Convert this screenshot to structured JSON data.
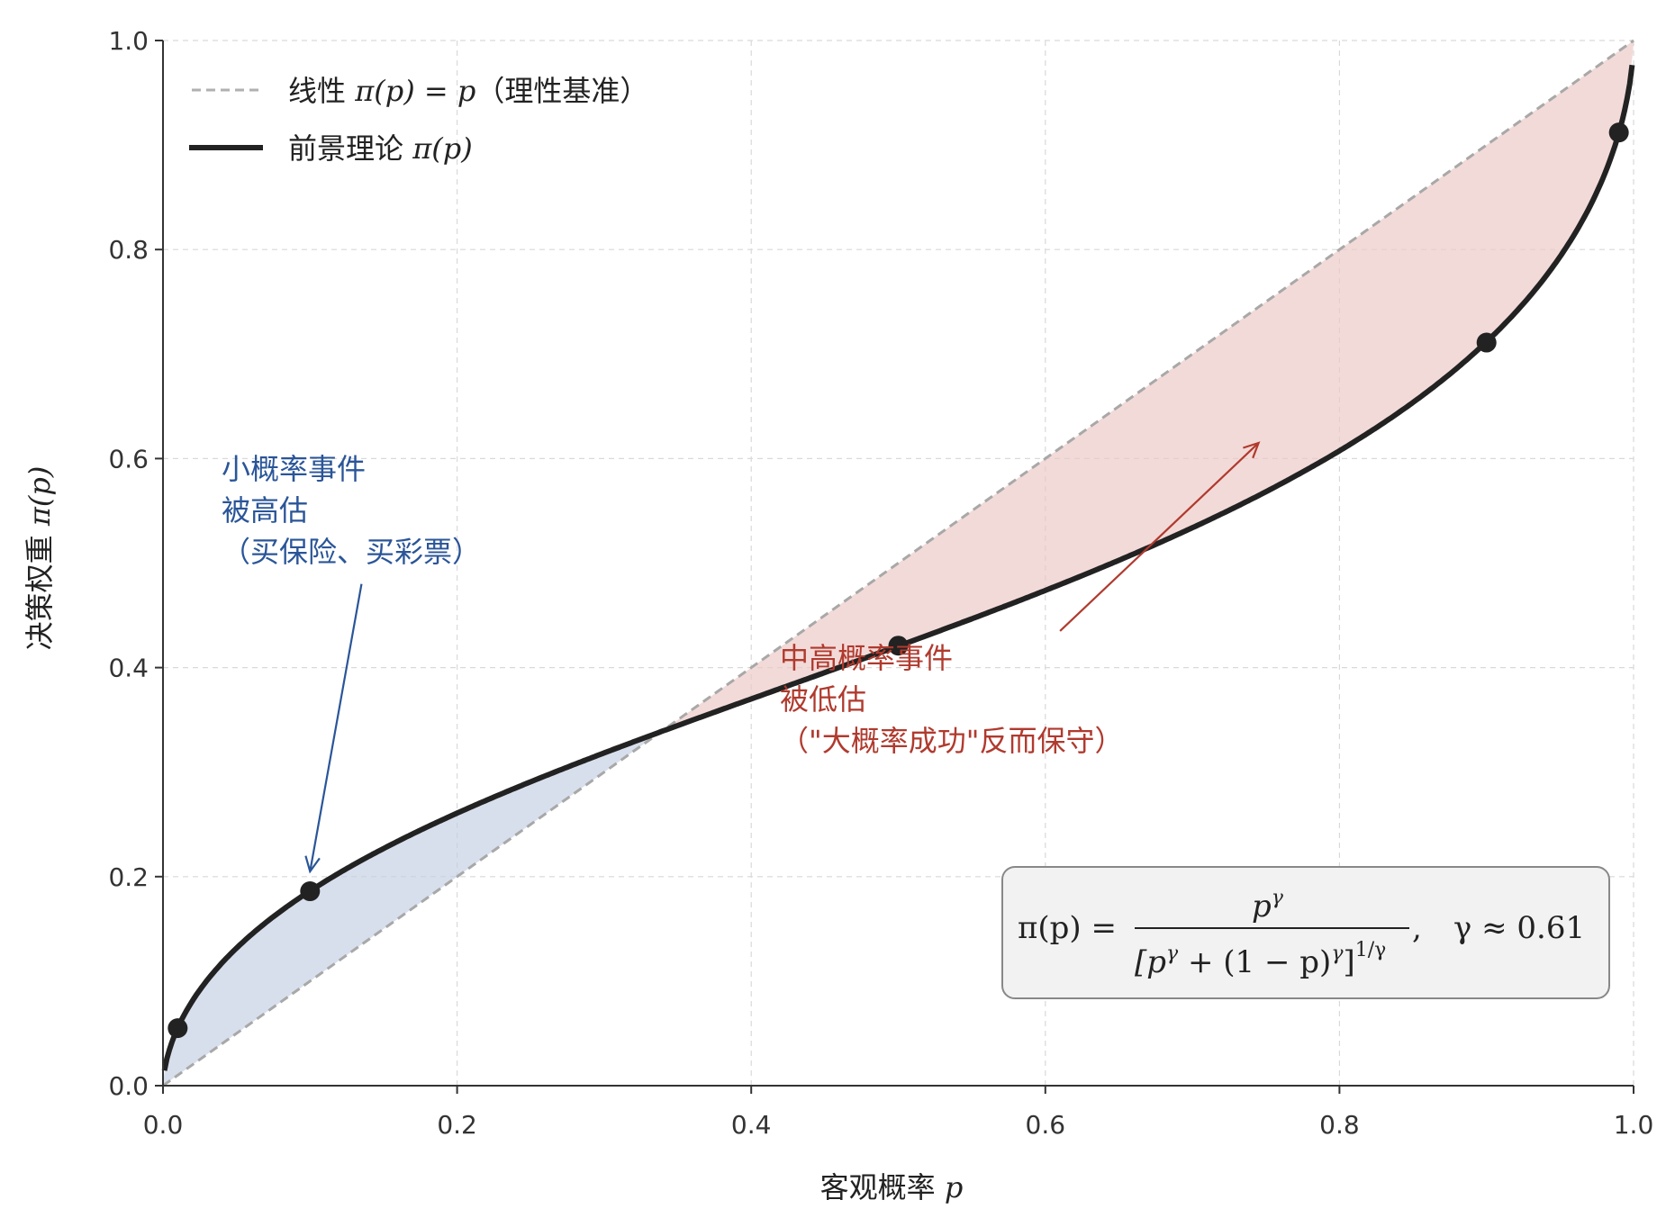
{
  "chart_data": {
    "type": "line",
    "xlabel": "客观概率 ",
    "xlabel_math": "p",
    "ylabel": "决策权重 ",
    "ylabel_math": "π(p)",
    "xlim": [
      0.0,
      1.0
    ],
    "ylim": [
      0.0,
      1.0
    ],
    "xticks": [
      "0.0",
      "0.2",
      "0.4",
      "0.6",
      "0.8",
      "1.0"
    ],
    "yticks": [
      "0.0",
      "0.2",
      "0.4",
      "0.6",
      "0.8",
      "1.0"
    ],
    "grid": true,
    "legend_position": "top-left",
    "gamma": 0.61,
    "series": [
      {
        "name": "线性 π(p) = p（理性基准）",
        "legend_prefix": "线性 ",
        "legend_math": "π(p) = p",
        "legend_suffix": "（理性基准）",
        "style": "dashed",
        "color": "#b0b0b0",
        "x": [
          0.0,
          1.0
        ],
        "y": [
          0.0,
          1.0
        ]
      },
      {
        "name": "前景理论 π(p)",
        "legend_prefix": "前景理论 ",
        "legend_math": "π(p)",
        "style": "solid",
        "color": "#222222",
        "x": [
          0.001,
          0.01,
          0.05,
          0.1,
          0.2,
          0.3,
          0.34,
          0.4,
          0.5,
          0.6,
          0.7,
          0.8,
          0.9,
          0.95,
          0.99,
          0.999
        ],
        "y": [
          0.013,
          0.055,
          0.132,
          0.186,
          0.261,
          0.315,
          0.334,
          0.362,
          0.421,
          0.475,
          0.533,
          0.604,
          0.711,
          0.793,
          0.912,
          0.977
        ]
      }
    ],
    "markers": [
      {
        "x": 0.01,
        "y": 0.055
      },
      {
        "x": 0.1,
        "y": 0.186
      },
      {
        "x": 0.5,
        "y": 0.421
      },
      {
        "x": 0.9,
        "y": 0.711
      },
      {
        "x": 0.99,
        "y": 0.912
      }
    ],
    "fills": [
      {
        "region": "overweight",
        "x_range": [
          0.0,
          0.34
        ],
        "color": "#c5d0e3"
      },
      {
        "region": "underweight",
        "x_range": [
          0.34,
          1.0
        ],
        "color": "#ecc8c5"
      }
    ],
    "annotations": [
      {
        "lines": [
          "小概率事件",
          "被高估",
          "（买保险、买彩票）"
        ],
        "color": "#2a5598",
        "arrow_from": [
          0.135,
          0.48
        ],
        "arrow_to": [
          0.1,
          0.205
        ]
      },
      {
        "lines": [
          "中高概率事件",
          "被低估",
          "（\"大概率成功\"反而保守）"
        ],
        "color": "#b03a2e",
        "arrow_from": [
          0.61,
          0.435
        ],
        "arrow_to": [
          0.745,
          0.615
        ]
      }
    ],
    "formula": {
      "lhs": "π(p) =",
      "numerator": "p",
      "numerator_sup": "γ",
      "denominator": "[p",
      "denominator_sup1": "γ",
      "denominator_mid": " + (1 − p)",
      "denominator_sup2": "γ",
      "denominator_end": "]",
      "denominator_sup3": "1/γ",
      "tail": ",",
      "gamma_text": "γ ≈ 0.61",
      "box_fill": "#f2f2f2",
      "box_stroke": "#888888"
    }
  }
}
